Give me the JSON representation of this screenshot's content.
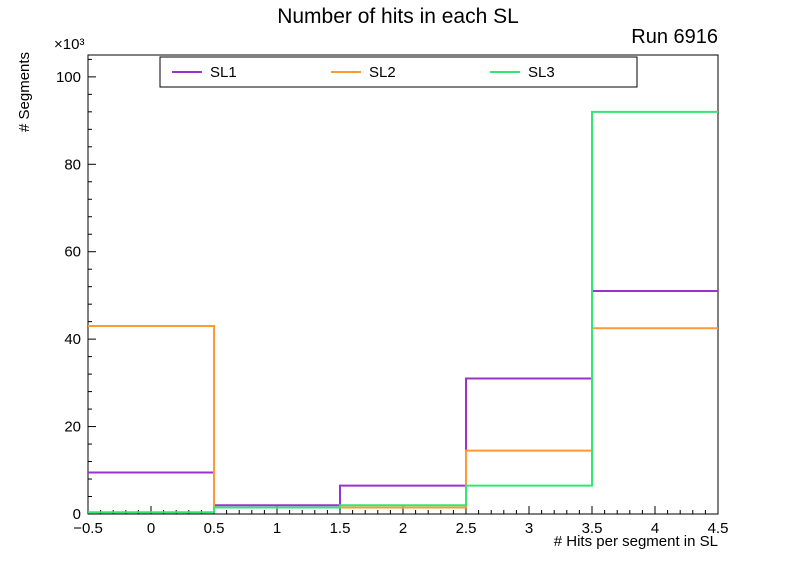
{
  "title": "Number of hits in each SL",
  "run_label": "Run 6916",
  "axes": {
    "y_multiplier": "×10³",
    "ylabel": "# Segments",
    "xlabel": "# Hits per segment in SL",
    "x_ticks": [
      "−0.5",
      "0",
      "0.5",
      "1",
      "1.5",
      "2",
      "2.5",
      "3",
      "3.5",
      "4",
      "4.5"
    ],
    "y_ticks": [
      "0",
      "20",
      "40",
      "60",
      "80",
      "100"
    ]
  },
  "chart_data": {
    "type": "step-histogram",
    "title": "Number of hits in each SL",
    "xlabel": "# Hits per segment in SL",
    "ylabel": "# Segments",
    "y_units": "×10³",
    "bin_edges": [
      -0.5,
      0.5,
      1.5,
      2.5,
      3.5,
      4.5
    ],
    "series": [
      {
        "name": "SL1",
        "color": "#9933cc",
        "values": [
          9.5,
          2.0,
          6.5,
          31.0,
          51.0
        ]
      },
      {
        "name": "SL2",
        "color": "#ff9933",
        "values": [
          43.0,
          1.5,
          1.5,
          14.5,
          42.5
        ]
      },
      {
        "name": "SL3",
        "color": "#33e673",
        "values": [
          0.4,
          1.5,
          2.0,
          6.5,
          92.0
        ]
      }
    ],
    "xlim": [
      -0.5,
      4.5
    ],
    "ylim": [
      0,
      105
    ],
    "y_scale_factor": 1000,
    "grid": false,
    "legend_position": "top-inside"
  }
}
